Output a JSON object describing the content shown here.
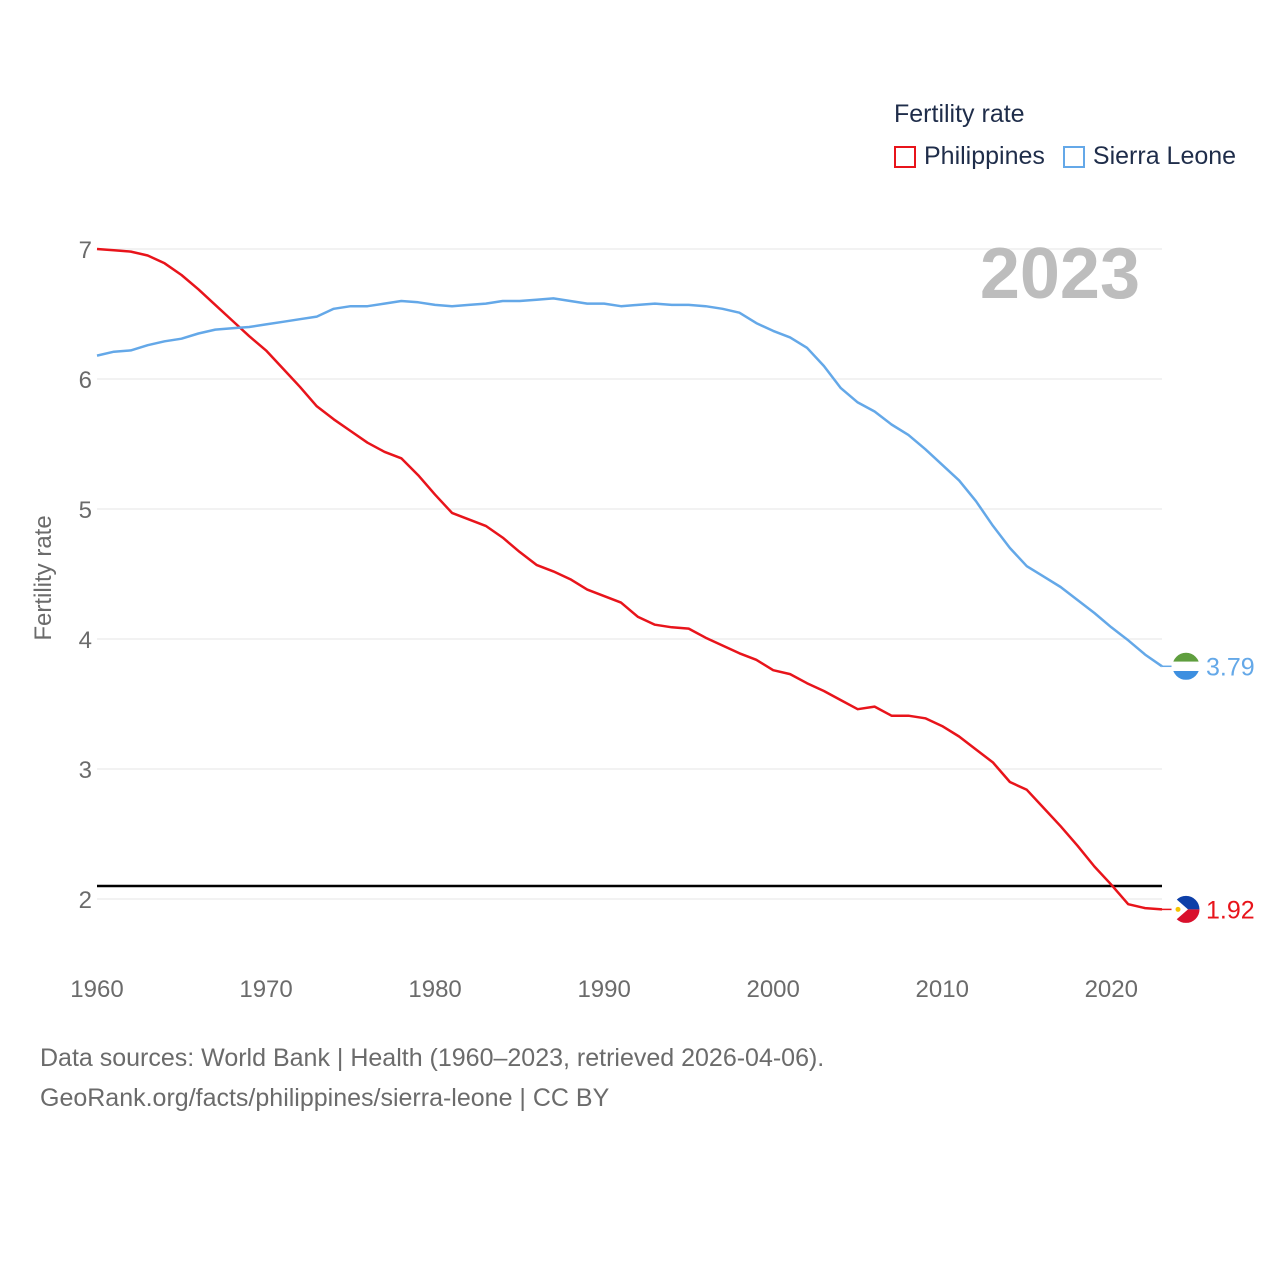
{
  "legend": {
    "title": "Fertility rate",
    "items": [
      {
        "label": "Philippines",
        "color": "#e8141b"
      },
      {
        "label": "Sierra Leone",
        "color": "#64a8e8"
      }
    ]
  },
  "year_label": "2023",
  "footer": {
    "line1": "Data sources: World Bank | Health (1960–2023, retrieved 2026-04-06).",
    "line2": "GeoRank.org/facts/philippines/sierra-leone | CC BY"
  },
  "chart_data": {
    "type": "line",
    "title": "Fertility rate",
    "xlabel": "",
    "ylabel": "Fertility rate",
    "xlim": [
      1960,
      2023
    ],
    "ylim": [
      1.5,
      7.0
    ],
    "x_ticks": [
      1960,
      1970,
      1980,
      1990,
      2000,
      2010,
      2020
    ],
    "y_ticks": [
      2,
      3,
      4,
      5,
      6,
      7
    ],
    "reference_line": {
      "y": 2.1,
      "color": "#000000"
    },
    "x": [
      1960,
      1961,
      1962,
      1963,
      1964,
      1965,
      1966,
      1967,
      1968,
      1969,
      1970,
      1971,
      1972,
      1973,
      1974,
      1975,
      1976,
      1977,
      1978,
      1979,
      1980,
      1981,
      1982,
      1983,
      1984,
      1985,
      1986,
      1987,
      1988,
      1989,
      1990,
      1991,
      1992,
      1993,
      1994,
      1995,
      1996,
      1997,
      1998,
      1999,
      2000,
      2001,
      2002,
      2003,
      2004,
      2005,
      2006,
      2007,
      2008,
      2009,
      2010,
      2011,
      2012,
      2013,
      2014,
      2015,
      2016,
      2017,
      2018,
      2019,
      2020,
      2021,
      2022,
      2023
    ],
    "series": [
      {
        "name": "Philippines",
        "color": "#e8141b",
        "end_label": "1.92",
        "values": [
          7.0,
          6.99,
          6.98,
          6.95,
          6.89,
          6.8,
          6.69,
          6.57,
          6.45,
          6.33,
          6.22,
          6.08,
          5.94,
          5.79,
          5.69,
          5.6,
          5.51,
          5.44,
          5.39,
          5.26,
          5.11,
          4.97,
          4.92,
          4.87,
          4.78,
          4.67,
          4.57,
          4.52,
          4.46,
          4.38,
          4.33,
          4.28,
          4.17,
          4.11,
          4.09,
          4.08,
          4.01,
          3.95,
          3.89,
          3.84,
          3.76,
          3.73,
          3.66,
          3.6,
          3.53,
          3.46,
          3.48,
          3.41,
          3.41,
          3.39,
          3.33,
          3.25,
          3.15,
          3.05,
          2.9,
          2.84,
          2.7,
          2.56,
          2.41,
          2.25,
          2.11,
          1.96,
          1.93,
          1.92
        ]
      },
      {
        "name": "Sierra Leone",
        "color": "#64a8e8",
        "end_label": "3.79",
        "values": [
          6.18,
          6.21,
          6.22,
          6.26,
          6.29,
          6.31,
          6.35,
          6.38,
          6.39,
          6.4,
          6.42,
          6.44,
          6.46,
          6.48,
          6.54,
          6.56,
          6.56,
          6.58,
          6.6,
          6.59,
          6.57,
          6.56,
          6.57,
          6.58,
          6.6,
          6.6,
          6.61,
          6.62,
          6.6,
          6.58,
          6.58,
          6.56,
          6.57,
          6.58,
          6.57,
          6.57,
          6.56,
          6.54,
          6.51,
          6.43,
          6.37,
          6.32,
          6.24,
          6.1,
          5.93,
          5.82,
          5.75,
          5.65,
          5.57,
          5.46,
          5.34,
          5.22,
          5.06,
          4.87,
          4.7,
          4.56,
          4.48,
          4.4,
          4.3,
          4.2,
          4.09,
          3.99,
          3.88,
          3.79
        ]
      }
    ]
  }
}
